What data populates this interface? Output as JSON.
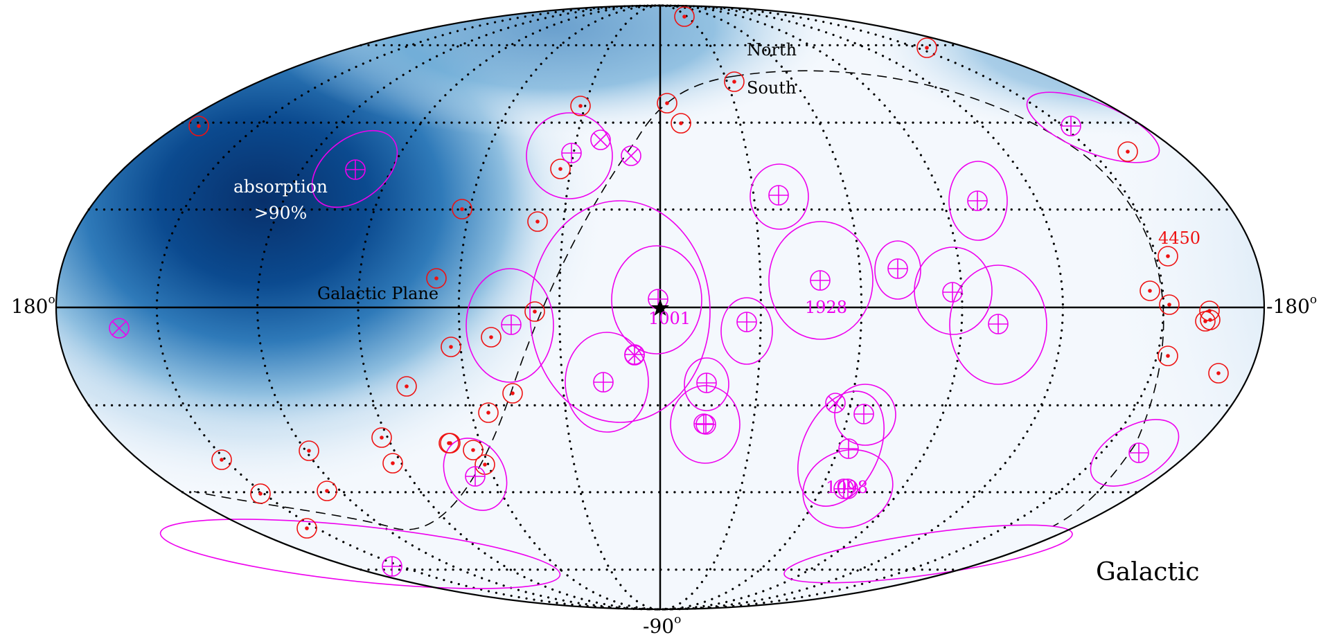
{
  "labels": {
    "north": "North",
    "south": "South",
    "absorption_line1": "absorption",
    "absorption_line2": ">90%",
    "galactic_plane": "Galactic Plane",
    "left_edge": "180",
    "right_edge": "-180",
    "bottom": "-90",
    "degree_sign": "o",
    "frame": "Galactic",
    "id_1001": "1001",
    "id_1928": "1928",
    "id_1098": "1098",
    "id_4450": "4450"
  },
  "colors": {
    "grid": "#000000",
    "red_marker": "#ee1111",
    "magenta": "#ee00ee",
    "absorption_dark": "#08306b",
    "absorption_light": "#f4f8fd"
  },
  "markers": {
    "red_circle_count": 45,
    "magenta_crossed_circle_count": 28,
    "magenta_x_circle_count": 5,
    "star_count": 1
  }
}
